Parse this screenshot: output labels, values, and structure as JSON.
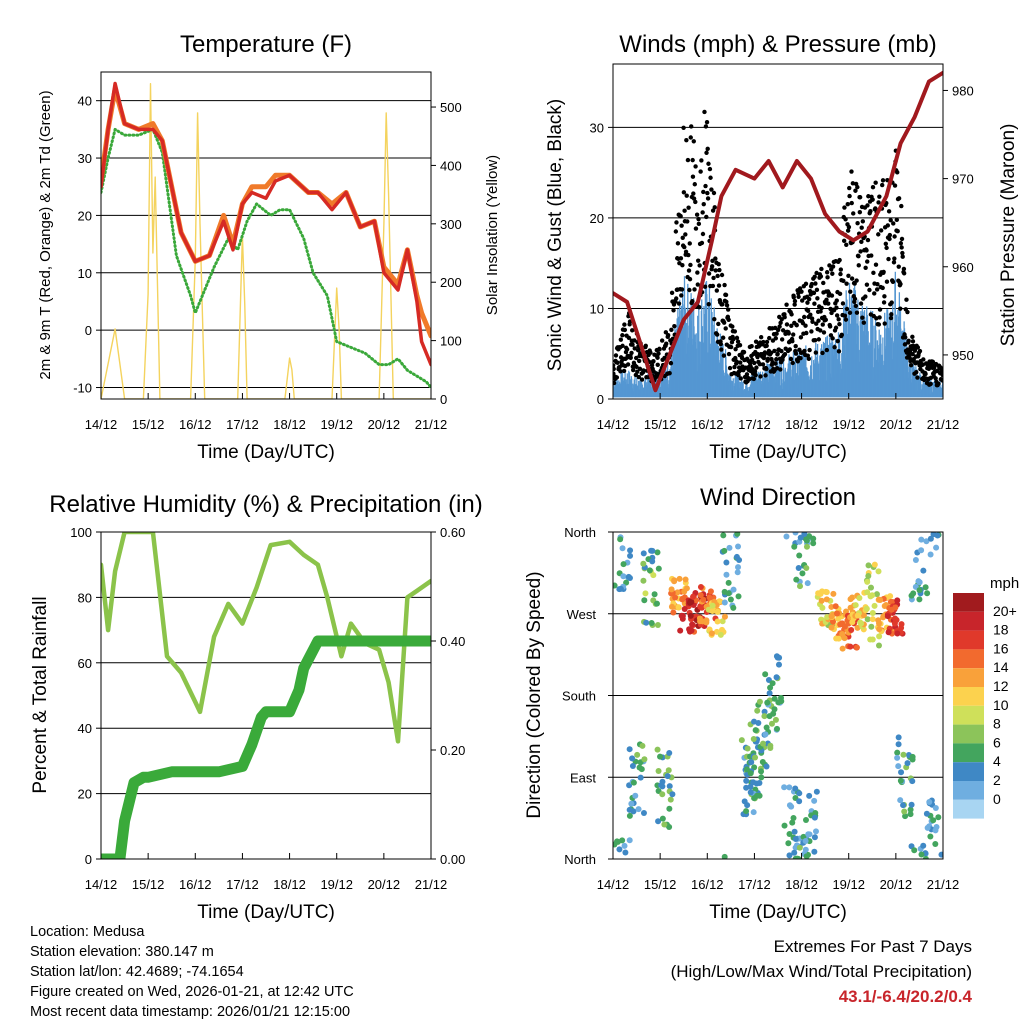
{
  "colors": {
    "t2m": "#d62a24",
    "t9m": "#f07a2a",
    "td": "#3aa83a",
    "solar": "#f4d35e",
    "wind": "#5597d2",
    "gust": "#000000",
    "pressure": "#a1191e",
    "rh": "#8bc34a",
    "precip": "#3aaa3a",
    "accent": "#c8252b"
  },
  "x_ticks": [
    "14/12",
    "15/12",
    "16/12",
    "17/12",
    "18/12",
    "19/12",
    "20/12",
    "21/12"
  ],
  "panels": {
    "temperature": {
      "title": "Temperature (F)",
      "xlabel": "Time (Day/UTC)",
      "ylabel_left": "2m & 9m T (Red, Orange) & 2m Td (Green)",
      "ylabel_right": "Solar Insolation (Yellow)",
      "yticks_left": [
        "40",
        "30",
        "20",
        "10",
        "0",
        "-10"
      ],
      "yticks_right": [
        "500",
        "400",
        "300",
        "200",
        "100",
        "0"
      ]
    },
    "winds": {
      "title": "Winds (mph) & Pressure (mb)",
      "xlabel": "Time (Day/UTC)",
      "ylabel_left": "Sonic Wind & Gust (Blue, Black)",
      "ylabel_right": "Station Pressure (Maroon)",
      "yticks_left": [
        "30",
        "20",
        "10",
        "0"
      ],
      "yticks_right": [
        "980",
        "970",
        "960",
        "950"
      ]
    },
    "humidity": {
      "title": "Relative Humidity (%) & Precipitation (in)",
      "xlabel": "Time (Day/UTC)",
      "ylabel_left": "Percent & Total Rainfall",
      "yticks_left": [
        "100",
        "80",
        "60",
        "40",
        "20",
        "0"
      ],
      "yticks_right": [
        "0.60",
        "0.40",
        "0.20",
        "0.00"
      ]
    },
    "direction": {
      "title": "Wind Direction",
      "xlabel": "Time (Day/UTC)",
      "ylabel": "Direction (Colored By Speed)",
      "yticks": [
        "North",
        "West",
        "South",
        "East",
        "North"
      ],
      "legend_title": "mph",
      "legend_labels": [
        "20+",
        "18",
        "16",
        "14",
        "12",
        "10",
        "8",
        "6",
        "4",
        "2",
        "0"
      ],
      "legend_colors": [
        "#a11b1e",
        "#c8252b",
        "#e0392b",
        "#f26a2e",
        "#f9a13a",
        "#fcd24e",
        "#cfe05a",
        "#8cc45a",
        "#43a55e",
        "#3f88c5",
        "#6faee0",
        "#a8d5f2"
      ]
    }
  },
  "info": {
    "location": "Location: Medusa",
    "elevation": "Station elevation: 380.147 m",
    "latlon": "Station lat/lon: 42.4689; -74.1654",
    "created": "Figure created on Wed, 2026-01-21, at 12:42 UTC",
    "recent": "Most recent data timestamp: 2026/01/21 12:15:00"
  },
  "extremes": {
    "title": "Extremes For Past 7 Days",
    "subtitle": "(High/Low/Max Wind/Total Precipitation)",
    "values": "43.1/-6.4/20.2/0.4"
  },
  "chart_data": [
    {
      "type": "line",
      "title": "Temperature (F)",
      "xlabel": "Time (Day/UTC)",
      "xlim": [
        0,
        7
      ],
      "ylim": [
        -12,
        45
      ],
      "y2lim": [
        0,
        560
      ],
      "series": [
        {
          "name": "2m T (Red)",
          "x": [
            0,
            0.15,
            0.3,
            0.5,
            0.8,
            1.1,
            1.3,
            1.7,
            2.0,
            2.3,
            2.6,
            2.8,
            3.0,
            3.2,
            3.5,
            3.7,
            4.0,
            4.4,
            4.6,
            4.9,
            5.2,
            5.5,
            5.8,
            6.0,
            6.3,
            6.5,
            6.7,
            6.8,
            7.0
          ],
          "y": [
            25,
            35,
            43,
            36,
            35,
            35,
            33,
            17,
            12,
            13,
            19,
            14,
            22,
            24,
            23,
            26,
            27,
            24,
            24,
            21,
            24,
            18,
            19,
            10,
            7,
            14,
            5,
            -2,
            -6
          ]
        },
        {
          "name": "9m T (Orange)",
          "x": [
            0,
            0.15,
            0.3,
            0.5,
            0.8,
            1.1,
            1.3,
            1.7,
            2.0,
            2.3,
            2.6,
            2.8,
            3.0,
            3.2,
            3.5,
            3.7,
            4.0,
            4.4,
            4.6,
            4.9,
            5.2,
            5.5,
            5.8,
            6.0,
            6.3,
            6.5,
            6.7,
            6.8,
            7.0
          ],
          "y": [
            26,
            35,
            42,
            36,
            35,
            36,
            33,
            17,
            12,
            13,
            20,
            15,
            22,
            25,
            25,
            27,
            27,
            24,
            24,
            22,
            24,
            18,
            19,
            11,
            8,
            14,
            6,
            3,
            -1
          ]
        },
        {
          "name": "2m Td (Green)",
          "x": [
            0,
            0.15,
            0.3,
            0.5,
            0.8,
            1.1,
            1.3,
            1.6,
            1.9,
            2.0,
            2.2,
            2.4,
            2.7,
            2.9,
            3.1,
            3.3,
            3.6,
            3.8,
            4.0,
            4.3,
            4.5,
            4.8,
            5.0,
            5.3,
            5.6,
            5.9,
            6.1,
            6.3,
            6.5,
            6.7,
            6.9,
            7.0
          ],
          "y": [
            24,
            30,
            35,
            34,
            34,
            35,
            31,
            13,
            6,
            3,
            7,
            11,
            16,
            14,
            19,
            22,
            20,
            21,
            21,
            16,
            10,
            6,
            -2,
            -3,
            -4,
            -6,
            -6,
            -5,
            -7,
            -8,
            -9,
            -10
          ]
        },
        {
          "name": "Solar Insolation (Yellow)",
          "x": [
            0,
            0.2,
            0.3,
            0.4,
            0.5,
            0.9,
            1.0,
            1.05,
            1.1,
            1.15,
            1.25,
            1.9,
            2.0,
            2.05,
            2.1,
            2.2,
            2.9,
            3.0,
            3.05,
            3.1,
            3.9,
            4.0,
            4.05,
            4.1,
            4.9,
            5.0,
            5.05,
            5.1,
            5.9,
            6.0,
            6.05,
            6.1,
            6.2,
            6.9,
            7.0
          ],
          "y": [
            0,
            80,
            120,
            60,
            0,
            0,
            180,
            540,
            250,
            380,
            0,
            0,
            240,
            490,
            300,
            0,
            0,
            280,
            160,
            0,
            0,
            70,
            50,
            0,
            0,
            190,
            120,
            0,
            0,
            300,
            490,
            350,
            0,
            0,
            0
          ]
        }
      ]
    },
    {
      "type": "line",
      "title": "Winds (mph) & Pressure (mb)",
      "xlabel": "Time (Day/UTC)",
      "xlim": [
        0,
        7
      ],
      "ylim": [
        0,
        37
      ],
      "y2lim": [
        945,
        983
      ],
      "series": [
        {
          "name": "Sonic Wind (Blue)",
          "x": [
            0,
            0.3,
            0.6,
            0.9,
            1.2,
            1.5,
            1.8,
            2.0,
            2.2,
            2.5,
            2.8,
            3.0,
            3.5,
            4.0,
            4.5,
            4.8,
            5.0,
            5.3,
            5.6,
            5.9,
            6.0,
            6.3,
            6.6,
            7.0
          ],
          "y": [
            2,
            3,
            2,
            3,
            4,
            12,
            10,
            12,
            8,
            3,
            2,
            3,
            4,
            5,
            6,
            7,
            12,
            10,
            8,
            9,
            13,
            4,
            2,
            2
          ]
        },
        {
          "name": "Gust (Black)",
          "x": [
            0,
            0.3,
            0.6,
            0.9,
            1.2,
            1.5,
            1.8,
            2.0,
            2.2,
            2.5,
            2.8,
            3.0,
            3.5,
            4.0,
            4.5,
            4.8,
            5.0,
            5.3,
            5.6,
            5.9,
            6.0,
            6.3,
            6.6,
            7.0
          ],
          "y": [
            4,
            10,
            6,
            5,
            8,
            30,
            28,
            32,
            18,
            8,
            5,
            6,
            9,
            12,
            14,
            15,
            25,
            22,
            23,
            24,
            28,
            8,
            4,
            4
          ]
        },
        {
          "name": "Station Pressure (Maroon)",
          "x": [
            0,
            0.3,
            0.6,
            0.9,
            1.2,
            1.5,
            1.8,
            2.1,
            2.3,
            2.6,
            3.0,
            3.3,
            3.6,
            3.9,
            4.2,
            4.5,
            4.8,
            5.1,
            5.4,
            5.8,
            6.1,
            6.4,
            6.7,
            7.0
          ],
          "y": [
            957,
            956,
            951,
            946,
            950,
            954,
            956,
            963,
            968,
            971,
            970,
            972,
            969,
            972,
            970,
            966,
            964,
            963,
            964,
            968,
            974,
            977,
            981,
            982
          ]
        }
      ]
    },
    {
      "type": "line",
      "title": "Relative Humidity (%) & Precipitation (in)",
      "xlabel": "Time (Day/UTC)",
      "xlim": [
        0,
        7
      ],
      "ylim": [
        0,
        100
      ],
      "y2lim": [
        0,
        0.6
      ],
      "series": [
        {
          "name": "Relative Humidity (%)",
          "x": [
            0,
            0.15,
            0.3,
            0.5,
            0.8,
            1.1,
            1.4,
            1.7,
            2.0,
            2.1,
            2.4,
            2.7,
            3.0,
            3.3,
            3.6,
            4.0,
            4.3,
            4.6,
            4.8,
            5.1,
            5.3,
            5.6,
            5.9,
            6.1,
            6.3,
            6.5,
            6.7,
            7.0
          ],
          "y": [
            90,
            70,
            88,
            100,
            100,
            100,
            62,
            57,
            48,
            45,
            68,
            78,
            72,
            83,
            96,
            97,
            93,
            90,
            80,
            62,
            72,
            66,
            64,
            54,
            36,
            80,
            82,
            85
          ]
        },
        {
          "name": "Total Rainfall (in)",
          "x": [
            0,
            0.4,
            0.5,
            0.7,
            0.9,
            1.0,
            1.5,
            2.0,
            2.5,
            3.0,
            3.2,
            3.4,
            3.5,
            4.0,
            4.2,
            4.3,
            4.6,
            4.8,
            5.0,
            5.5,
            6.0,
            6.5,
            7.0
          ],
          "y": [
            0,
            0,
            0.07,
            0.14,
            0.15,
            0.15,
            0.16,
            0.16,
            0.16,
            0.17,
            0.21,
            0.26,
            0.27,
            0.27,
            0.31,
            0.35,
            0.4,
            0.4,
            0.4,
            0.4,
            0.4,
            0.4,
            0.4
          ]
        }
      ]
    },
    {
      "type": "scatter",
      "title": "Wind Direction",
      "xlabel": "Time (Day/UTC)",
      "ylabel": "Direction (Colored By Speed)",
      "xlim": [
        0,
        7
      ],
      "ylim": [
        0,
        360
      ],
      "series": [
        {
          "name": "Direction (deg) colored by speed (mph)",
          "x": [
            0.2,
            0.5,
            0.8,
            1.1,
            1.4,
            1.6,
            1.8,
            2.0,
            2.2,
            2.5,
            2.9,
            3.0,
            3.2,
            3.4,
            3.8,
            4.0,
            4.2,
            4.5,
            4.8,
            5.0,
            5.2,
            5.5,
            5.8,
            6.0,
            6.2,
            6.5,
            6.8
          ],
          "y": [
            340,
            90,
            300,
            80,
            290,
            270,
            275,
            280,
            265,
            320,
            90,
            110,
            130,
            180,
            40,
            340,
            30,
            275,
            260,
            250,
            270,
            280,
            270,
            265,
            90,
            330,
            20
          ],
          "speed": [
            2,
            3,
            5,
            4,
            12,
            16,
            18,
            14,
            10,
            2,
            3,
            4,
            4,
            3,
            2,
            3,
            2,
            9,
            12,
            14,
            10,
            8,
            12,
            16,
            3,
            2,
            2
          ]
        }
      ]
    }
  ]
}
